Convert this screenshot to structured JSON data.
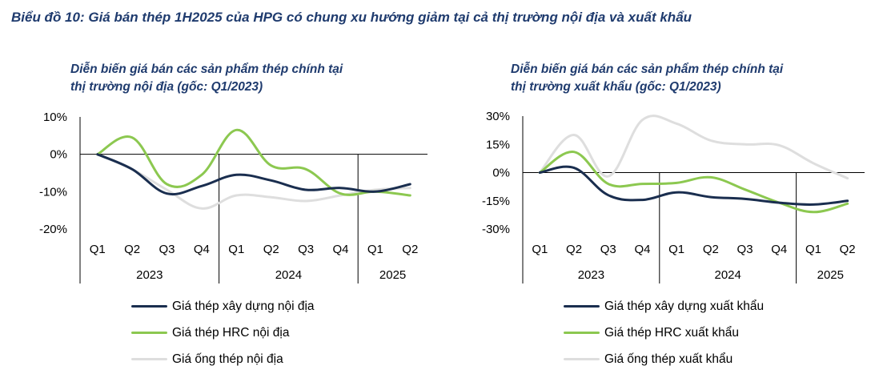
{
  "title": "Biểu đồ 10: Giá bán thép 1H2025 của HPG có chung xu hướng giảm tại cả thị trường nội địa và xuất khẩu",
  "chart_data": [
    {
      "type": "line",
      "title_lines": [
        "Diễn biến giá bán các sản phẩm thép chính tại",
        "thị trường nội địa (gốc: Q1/2023)"
      ],
      "categories": [
        "Q1",
        "Q2",
        "Q3",
        "Q4",
        "Q1",
        "Q2",
        "Q3",
        "Q4",
        "Q1",
        "Q2"
      ],
      "groups": [
        {
          "label": "2023",
          "count": 4
        },
        {
          "label": "2024",
          "count": 4
        },
        {
          "label": "2025",
          "count": 2
        }
      ],
      "y_ticks": [
        10,
        0,
        -10,
        -20
      ],
      "y_tick_labels": [
        "10%",
        "0%",
        "-10%",
        "-20%"
      ],
      "ylim": [
        -20,
        10
      ],
      "y_unit": "%",
      "grid": false,
      "legend_position": "bottom",
      "series": [
        {
          "name": "Giá thép xây dựng nội địa",
          "color": "#1a2e4f",
          "values": [
            0,
            -4,
            -10.5,
            -8.5,
            -5.5,
            -7,
            -9.5,
            -9,
            -10,
            -8
          ]
        },
        {
          "name": "Giá thép HRC nội địa",
          "color": "#8cc850",
          "values": [
            0,
            4.5,
            -8,
            -5.5,
            6.5,
            -3,
            -4,
            -10.5,
            -10,
            -11
          ]
        },
        {
          "name": "Giá ống thép nội địa",
          "color": "#dedede",
          "values": [
            0,
            -4,
            -9.5,
            -14.5,
            -11,
            -11.5,
            -12.5,
            -11,
            -9.5,
            -9
          ]
        }
      ]
    },
    {
      "type": "line",
      "title_lines": [
        "Diễn biến giá bán các sản phẩm thép chính tại",
        "thị trường xuất khẩu (gốc: Q1/2023)"
      ],
      "categories": [
        "Q1",
        "Q2",
        "Q3",
        "Q4",
        "Q1",
        "Q2",
        "Q3",
        "Q4",
        "Q1",
        "Q2"
      ],
      "groups": [
        {
          "label": "2023",
          "count": 4
        },
        {
          "label": "2024",
          "count": 4
        },
        {
          "label": "2025",
          "count": 2
        }
      ],
      "y_ticks": [
        30,
        15,
        0,
        -15,
        -30
      ],
      "y_tick_labels": [
        "30%",
        "15%",
        "0%",
        "-15%",
        "-30%"
      ],
      "ylim": [
        -30,
        30
      ],
      "y_unit": "%",
      "grid": false,
      "legend_position": "bottom",
      "series": [
        {
          "name": "Giá thép xây dựng xuất khẩu",
          "color": "#1a2e4f",
          "values": [
            0,
            2.5,
            -12,
            -14.5,
            -10.5,
            -13,
            -14,
            -16,
            -17,
            -15
          ]
        },
        {
          "name": "Giá thép HRC xuất khẩu",
          "color": "#8cc850",
          "values": [
            0,
            11,
            -6,
            -6,
            -5.5,
            -2.5,
            -9,
            -16,
            -21,
            -16.5
          ]
        },
        {
          "name": "Giá ống thép xuất khẩu",
          "color": "#dedede",
          "values": [
            0,
            20,
            -2,
            28,
            26,
            17,
            15,
            14.5,
            5,
            -3
          ]
        }
      ]
    }
  ]
}
